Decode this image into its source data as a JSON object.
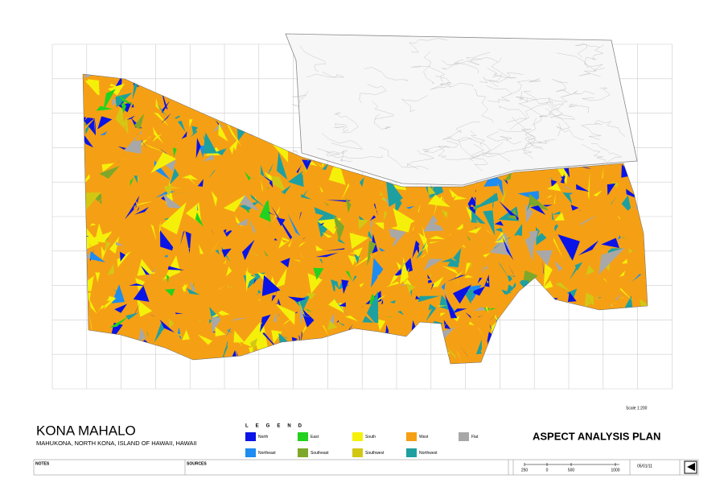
{
  "title": "KONA MAHALO",
  "subtitle": "MAHUKONA, NORTH KONA, ISLAND OF HAWAII, HAWAII",
  "plan_title": "ASPECT ANALYSIS PLAN",
  "scale": "Scale 1:200",
  "legend": {
    "title": "LEGEND",
    "items": [
      {
        "label": "North",
        "color": "#0a14e6"
      },
      {
        "label": "Northeast",
        "color": "#1e8cf0"
      },
      {
        "label": "East",
        "color": "#22d21e"
      },
      {
        "label": "Southeast",
        "color": "#7ea82a"
      },
      {
        "label": "South",
        "color": "#f5f00a"
      },
      {
        "label": "Southwest",
        "color": "#d2c814"
      },
      {
        "label": "West",
        "color": "#f5a014"
      },
      {
        "label": "Northwest",
        "color": "#1ea0a0"
      },
      {
        "label": "Flat",
        "color": "#a8a8a8"
      }
    ]
  },
  "footer": {
    "notes": "NOTES",
    "sources": "SOURCES",
    "scale_bar": [
      "250",
      "0",
      "500",
      "1000"
    ],
    "date": "05/01/11"
  }
}
